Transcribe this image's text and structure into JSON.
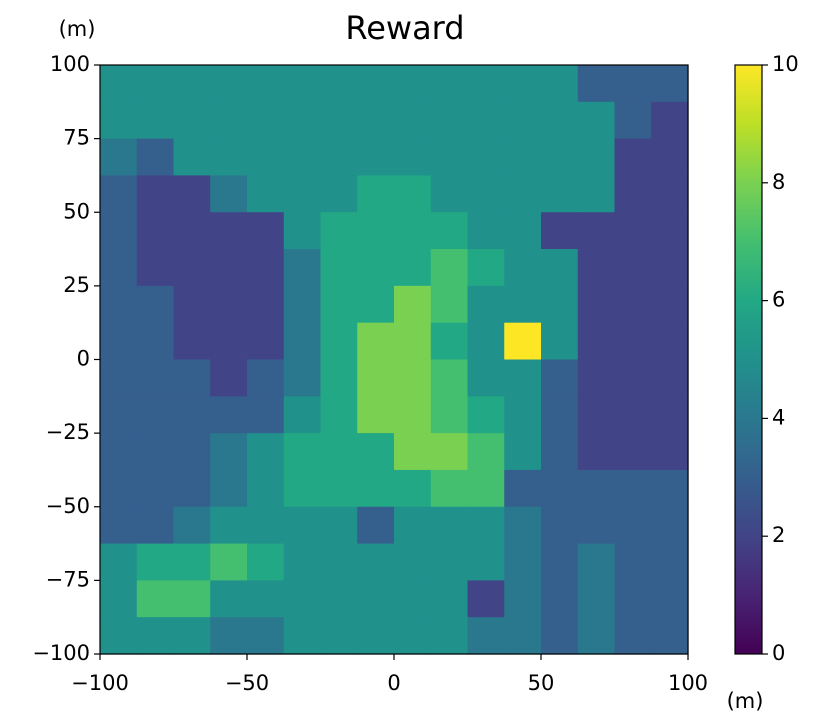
{
  "chart_data": {
    "type": "heatmap",
    "title": "Reward",
    "x_label": "(m)",
    "y_label": "(m)",
    "xlim": [
      -100,
      100
    ],
    "ylim": [
      -100,
      100
    ],
    "xticks": [
      {
        "value": -100,
        "label": "−100"
      },
      {
        "value": -50,
        "label": "−50"
      },
      0,
      50,
      100
    ],
    "yticks": [
      {
        "value": -100,
        "label": "−100"
      },
      {
        "value": -75,
        "label": "−75"
      },
      {
        "value": -50,
        "label": "−50"
      },
      {
        "value": -25,
        "label": "−25"
      },
      0,
      25,
      50,
      75,
      100
    ],
    "colormap": "viridis",
    "clim": [
      0,
      10
    ],
    "cticks": [
      0,
      2,
      4,
      6,
      8,
      10
    ],
    "values": [
      [
        5,
        5,
        5,
        5,
        5,
        5,
        5,
        5,
        5,
        5,
        5,
        5,
        5,
        3,
        3,
        3
      ],
      [
        5,
        5,
        5,
        5,
        5,
        5,
        5,
        5,
        5,
        5,
        5,
        5,
        5,
        5,
        3,
        2
      ],
      [
        4,
        3,
        5,
        5,
        5,
        5,
        5,
        5,
        5,
        5,
        5,
        5,
        5,
        5,
        2,
        2
      ],
      [
        3,
        2,
        2,
        4,
        5,
        5,
        5,
        6,
        6,
        5,
        5,
        5,
        5,
        5,
        2,
        2
      ],
      [
        3,
        2,
        2,
        2,
        2,
        5,
        6,
        6,
        6,
        6,
        5,
        5,
        2,
        2,
        2,
        2
      ],
      [
        3,
        2,
        2,
        2,
        2,
        4,
        6,
        6,
        6,
        7,
        6,
        5,
        5,
        2,
        2,
        2
      ],
      [
        3,
        3,
        2,
        2,
        2,
        4,
        6,
        6,
        8,
        7,
        5,
        5,
        5,
        2,
        2,
        2
      ],
      [
        3,
        3,
        2,
        2,
        2,
        4,
        6,
        8,
        8,
        6,
        5,
        10,
        5,
        2,
        2,
        2
      ],
      [
        3,
        3,
        3,
        2,
        3,
        4,
        6,
        8,
        8,
        7,
        5,
        5,
        3,
        2,
        2,
        2
      ],
      [
        3,
        3,
        3,
        3,
        3,
        5,
        6,
        8,
        8,
        7,
        6,
        5,
        3,
        2,
        2,
        2
      ],
      [
        3,
        3,
        3,
        4,
        5,
        6,
        6,
        6,
        8,
        8,
        7,
        5,
        3,
        2,
        2,
        2
      ],
      [
        3,
        3,
        3,
        4,
        5,
        6,
        6,
        6,
        6,
        7,
        7,
        3,
        3,
        3,
        3,
        3
      ],
      [
        3,
        3,
        4,
        5,
        5,
        5,
        5,
        3,
        5,
        5,
        5,
        4,
        3,
        3,
        3,
        3
      ],
      [
        5,
        6,
        6,
        7,
        6,
        5,
        5,
        5,
        5,
        5,
        5,
        4,
        3,
        4,
        3,
        3
      ],
      [
        5,
        7,
        7,
        5,
        5,
        5,
        5,
        5,
        5,
        5,
        2,
        4,
        3,
        4,
        3,
        3
      ],
      [
        5,
        5,
        5,
        4,
        4,
        5,
        5,
        5,
        5,
        5,
        4,
        4,
        3,
        4,
        3,
        3
      ]
    ]
  }
}
